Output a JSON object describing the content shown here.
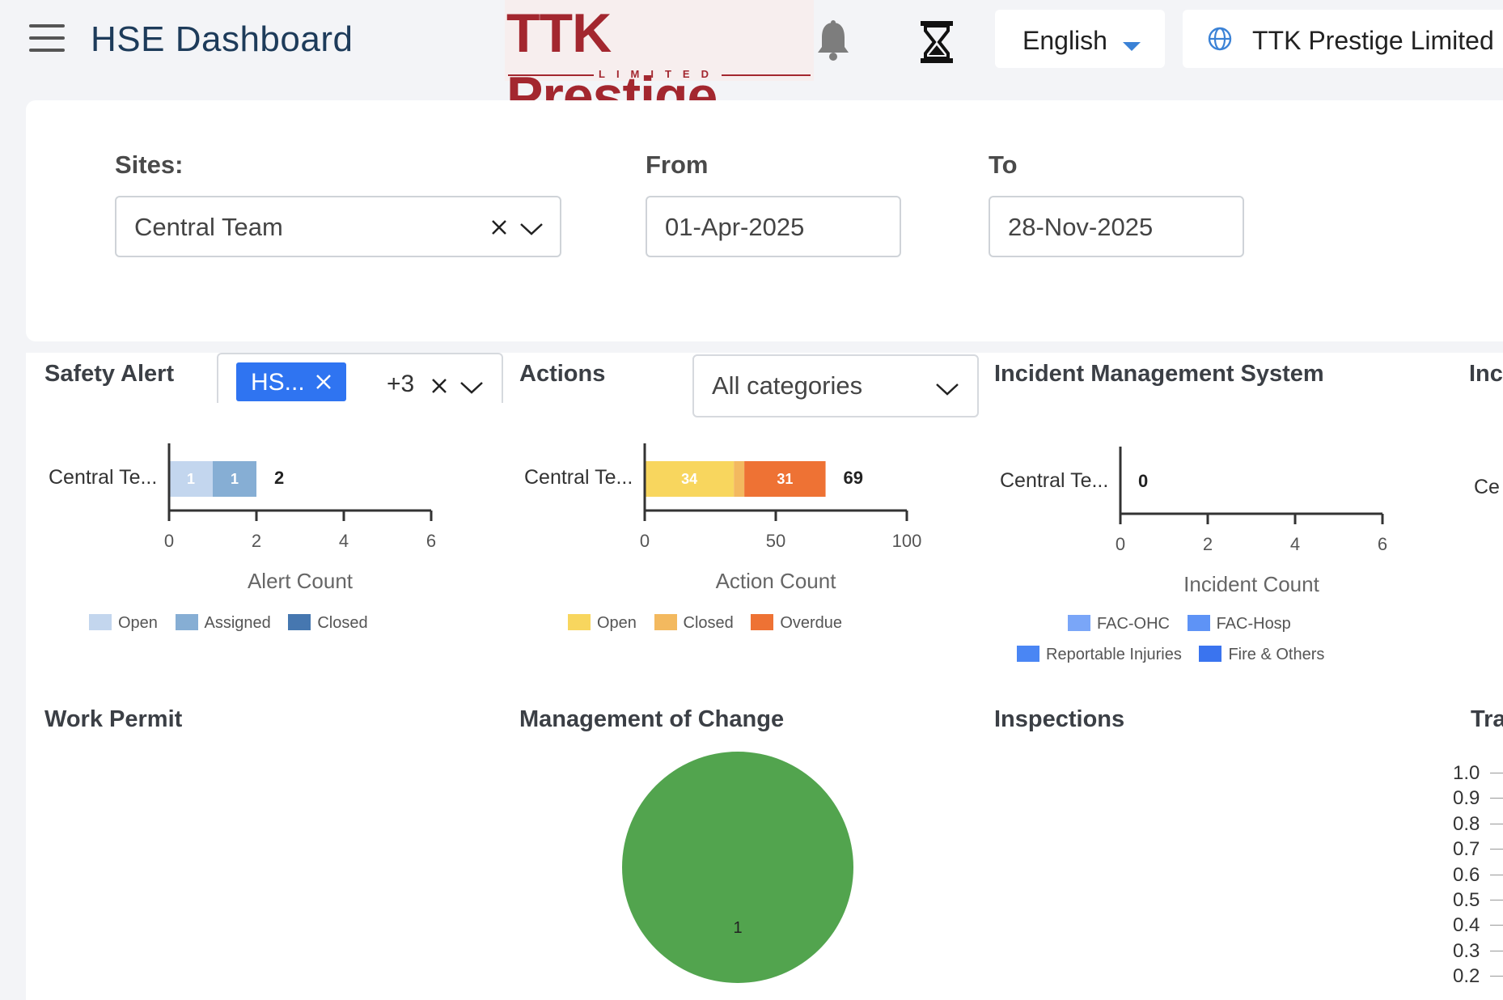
{
  "header": {
    "app_title": "HSE Dashboard",
    "logo_text": "TTK Prestige",
    "logo_subtext": "LIMITED",
    "language": "English",
    "company": "TTK Prestige Limited"
  },
  "filters": {
    "sites_label": "Sites:",
    "sites_value": "Central Team",
    "from_label": "From",
    "from_value": "01-Apr-2025",
    "to_label": "To",
    "to_value": "28-Nov-2025"
  },
  "sections": {
    "safety_alert": "Safety Alert",
    "safety_alert_chip": "HS...",
    "safety_alert_more": "+3",
    "actions": "Actions",
    "actions_category": "All categories",
    "incident_mgmt": "Incident Management System",
    "inc_cut": "Inc",
    "work_permit": "Work Permit",
    "moc": "Management of Change",
    "inspections": "Inspections",
    "tra_cut": "Tra",
    "ce_cut": "Ce"
  },
  "colors": {
    "alert_open": "#c3d6ee",
    "alert_assigned": "#86aed4",
    "alert_closed": "#4677b0",
    "action_open": "#f8d65e",
    "action_closed": "#f3b95f",
    "action_overdue": "#ee7234",
    "inc_fac_ohc": "#7aa6f8",
    "inc_fac_hosp": "#5e93f6",
    "inc_reportable": "#4a86f4",
    "inc_fire": "#3a74ef",
    "moc_pie": "#52a44e"
  },
  "chart_data": [
    {
      "type": "bar",
      "orientation": "horizontal",
      "stacked": true,
      "categories": [
        "Central Te..."
      ],
      "series": [
        {
          "name": "Open",
          "values": [
            1
          ]
        },
        {
          "name": "Assigned",
          "values": [
            1
          ]
        },
        {
          "name": "Closed",
          "values": [
            0
          ]
        }
      ],
      "totals": [
        2
      ],
      "xlabel": "Alert Count",
      "xlim": [
        0,
        6
      ],
      "xticks": [
        "0",
        "2",
        "4",
        "6"
      ],
      "legend": "bottom"
    },
    {
      "type": "bar",
      "orientation": "horizontal",
      "stacked": true,
      "categories": [
        "Central Te..."
      ],
      "series": [
        {
          "name": "Open",
          "values": [
            34
          ]
        },
        {
          "name": "Closed",
          "values": [
            4
          ]
        },
        {
          "name": "Overdue",
          "values": [
            31
          ]
        }
      ],
      "totals": [
        69
      ],
      "xlabel": "Action Count",
      "xlim": [
        0,
        100
      ],
      "xticks": [
        "0",
        "50",
        "100"
      ],
      "legend": "bottom"
    },
    {
      "type": "bar",
      "orientation": "horizontal",
      "stacked": true,
      "categories": [
        "Central Te..."
      ],
      "series": [
        {
          "name": "FAC-OHC",
          "values": [
            0
          ]
        },
        {
          "name": "FAC-Hosp",
          "values": [
            0
          ]
        },
        {
          "name": "Reportable Injuries",
          "values": [
            0
          ]
        },
        {
          "name": "Fire & Others",
          "values": [
            0
          ]
        }
      ],
      "totals": [
        0
      ],
      "xlabel": "Incident Count",
      "xlim": [
        0,
        6
      ],
      "xticks": [
        "0",
        "2",
        "4",
        "6"
      ],
      "legend": "bottom"
    },
    {
      "type": "pie",
      "slices": [
        {
          "label": "1",
          "value": 1
        }
      ]
    },
    {
      "type": "line",
      "yticks": [
        "1.0",
        "0.9",
        "0.8",
        "0.7",
        "0.6",
        "0.5",
        "0.4",
        "0.3",
        "0.2"
      ]
    }
  ]
}
